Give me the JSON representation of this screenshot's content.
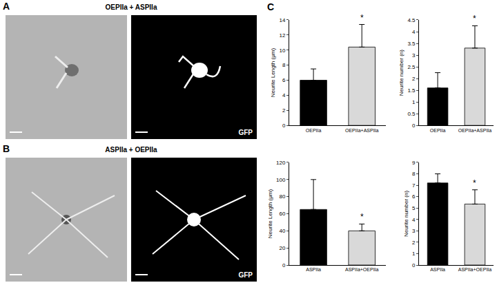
{
  "panels": [
    {
      "label": "A",
      "title": "OEPIIa + ASPIIa",
      "channel": "GFP"
    },
    {
      "label": "B",
      "title": "ASPIIa + OEPIIa",
      "channel": "GFP"
    }
  ],
  "chart_label": "C",
  "chart_data": [
    {
      "type": "bar",
      "ylabel": "Neurite Length (μm)",
      "categories": [
        "OEPIIa",
        "OEPIIa+ASPIIa"
      ],
      "values": [
        6.0,
        10.4
      ],
      "errors": [
        1.5,
        3.0
      ],
      "colors": [
        "#000000",
        "#d9d9d9"
      ],
      "ylim": [
        0,
        14
      ],
      "yticks": [
        0,
        2,
        4,
        6,
        8,
        10,
        12,
        14
      ],
      "grid": false,
      "annotations": [
        {
          "category": "OEPIIa+ASPIIa",
          "text": "*"
        }
      ]
    },
    {
      "type": "bar",
      "ylabel": "Neurite number (n)",
      "categories": [
        "OEPIIa",
        "OEPIIa+ASPIIa"
      ],
      "values": [
        1.6,
        3.3
      ],
      "errors": [
        0.65,
        0.95
      ],
      "colors": [
        "#000000",
        "#d9d9d9"
      ],
      "ylim": [
        0,
        4.5
      ],
      "yticks": [
        0,
        0.5,
        1,
        1.5,
        2,
        2.5,
        3,
        3.5,
        4,
        4.5
      ],
      "grid": false,
      "annotations": [
        {
          "category": "OEPIIa+ASPIIa",
          "text": "*"
        }
      ]
    },
    {
      "type": "bar",
      "ylabel": "Neurite Length (μm)",
      "categories": [
        "ASPIIa",
        "ASPIIa+OEPIIa"
      ],
      "values": [
        65,
        40
      ],
      "errors": [
        35,
        8
      ],
      "colors": [
        "#000000",
        "#d9d9d9"
      ],
      "ylim": [
        0,
        120
      ],
      "yticks": [
        0,
        20,
        40,
        60,
        80,
        100,
        120
      ],
      "grid": false,
      "annotations": [
        {
          "category": "ASPIIa+OEPIIa",
          "text": "*"
        }
      ]
    },
    {
      "type": "bar",
      "ylabel": "Neurite number (n)",
      "categories": [
        "ASPIIa",
        "ASPIIa+OEPIIa"
      ],
      "values": [
        7.2,
        5.35
      ],
      "errors": [
        0.8,
        1.25
      ],
      "colors": [
        "#000000",
        "#d9d9d9"
      ],
      "ylim": [
        0,
        9
      ],
      "yticks": [
        0,
        1,
        2,
        3,
        4,
        5,
        6,
        7,
        8,
        9
      ],
      "grid": false,
      "annotations": [
        {
          "category": "ASPIIa+OEPIIa",
          "text": "*"
        }
      ]
    }
  ]
}
